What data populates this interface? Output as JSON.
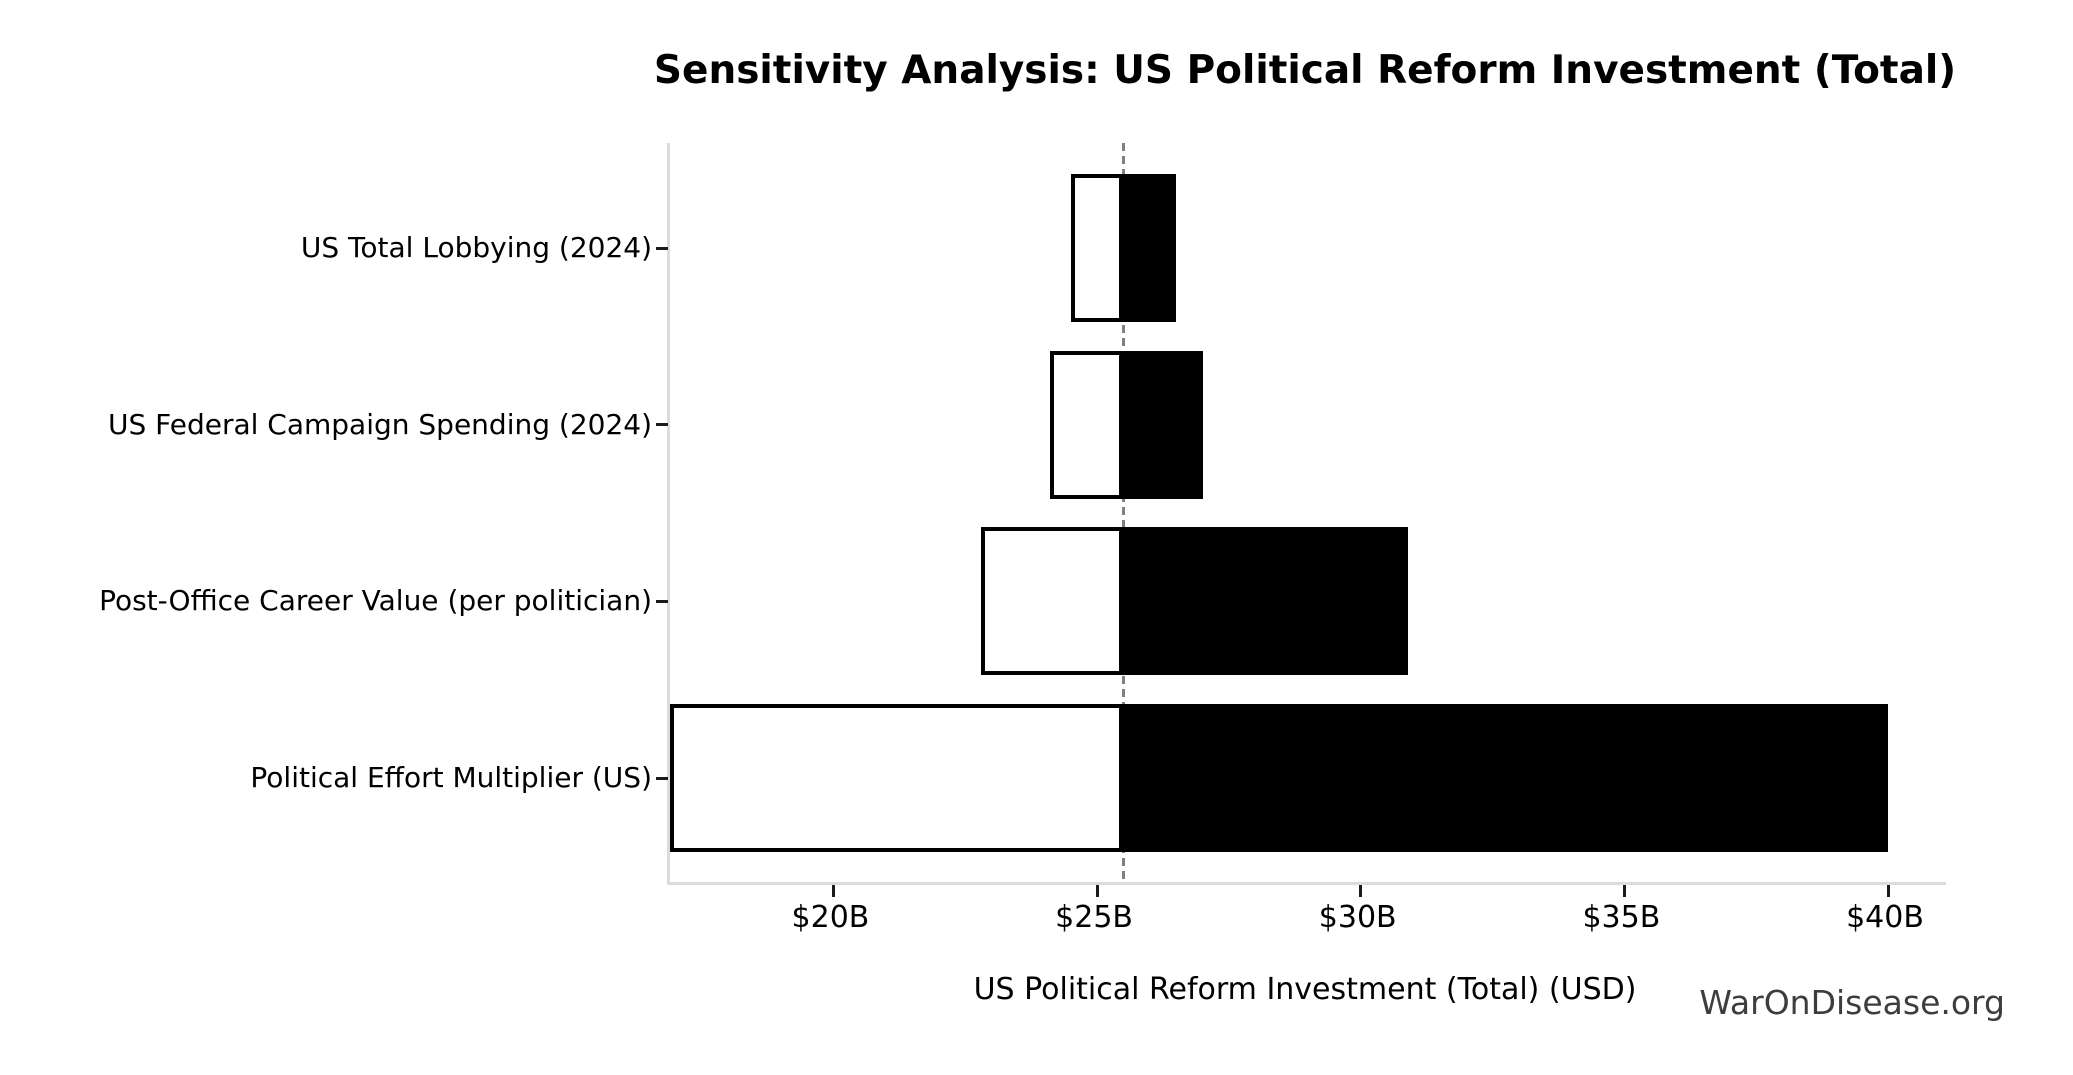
{
  "title": "Sensitivity Analysis: US Political Reform Investment (Total)",
  "watermark": "WarOnDisease.org",
  "chart_data": {
    "type": "bar",
    "subtype": "tornado-sensitivity",
    "orientation": "horizontal",
    "title": "Sensitivity Analysis: US Political Reform Investment (Total)",
    "xlabel": "US Political Reform Investment (Total) (USD)",
    "ylabel": "",
    "unit": "billions USD",
    "baseline_value": 25.5,
    "xlim": [
      16.9,
      41.1
    ],
    "x_ticks": [
      20,
      25,
      30,
      35,
      40
    ],
    "x_tick_labels": [
      "$20B",
      "$25B",
      "$30B",
      "$35B",
      "$40B"
    ],
    "grid": false,
    "legend": null,
    "categories": [
      "US Total Lobbying (2024)",
      "US Federal Campaign Spending (2024)",
      "Post-Office Career Value (per politician)",
      "Political Effort Multiplier (US)"
    ],
    "rows": [
      {
        "label": "US Total Lobbying (2024)",
        "low": 24.5,
        "high": 26.5
      },
      {
        "label": "US Federal Campaign Spending (2024)",
        "low": 24.1,
        "high": 27.0
      },
      {
        "label": "Post-Office Career Value (per politician)",
        "low": 22.8,
        "high": 30.9
      },
      {
        "label": "Political Effort Multiplier (US)",
        "low": 16.9,
        "high": 40.0
      }
    ],
    "colors": {
      "low_fill": "#ffffff",
      "high_fill": "#000000",
      "bar_edge": "#000000",
      "baseline": "#808080",
      "spine": "#dcdcdc",
      "tick": "#1a1a1a",
      "watermark": "#3d3d3d"
    }
  }
}
